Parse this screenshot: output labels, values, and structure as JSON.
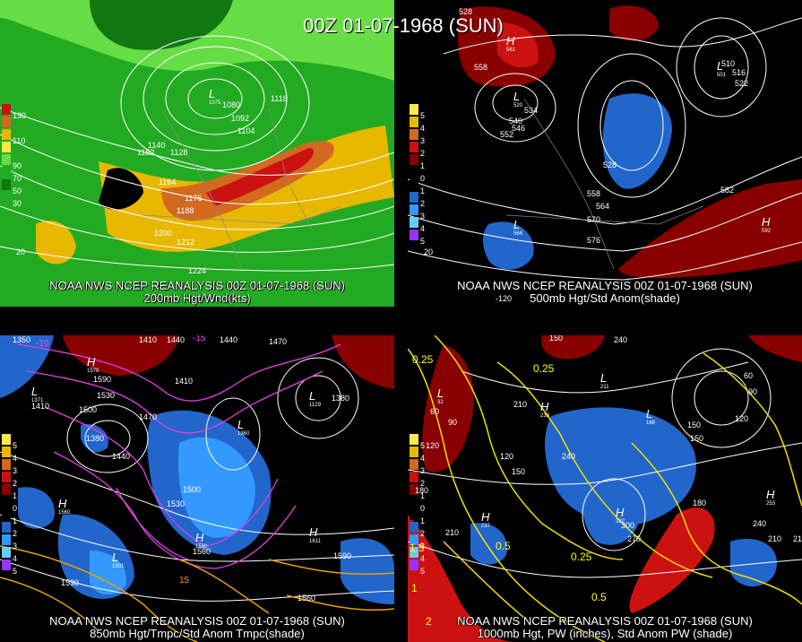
{
  "main_title": "00Z 01-07-1968 (SUN)",
  "panels": {
    "p1": {
      "caption_line1": "NOAA NWS NCEP REANALYSIS 00Z 01-07-1968 (SUN)",
      "caption_line2": "200mb Hgt/Wnd(kts)",
      "legend": [
        "130",
        "110",
        "90",
        "70",
        "50",
        "30"
      ],
      "legend_colors": [
        "#cc1111",
        "#d2691e",
        "#e8b800",
        "#ffe84a",
        "#66dd44",
        "#22aa22",
        "#117711"
      ],
      "low": {
        "letter": "L",
        "value": "1075"
      },
      "labels": [
        "1080",
        "1092",
        "1104",
        "1116",
        "1140",
        "1152",
        "1128",
        "1164",
        "1176",
        "1188",
        "1200",
        "1212",
        "1224",
        "20"
      ]
    },
    "p2": {
      "caption_line1": "NOAA NWS NCEP REANALYSIS 00Z 01-07-1968 (SUN)",
      "caption_line2": "500mb Hgt/Std Anom(shade)",
      "legend": [
        "5",
        "4",
        "3",
        "2",
        "1",
        "0",
        "1",
        "2",
        "3",
        "4",
        "5"
      ],
      "legend_colors": [
        "#ffe84a",
        "#e8b800",
        "#d2691e",
        "#cc1111",
        "#880000",
        "#000000",
        "#000000",
        "#2266cc",
        "#3399ff",
        "#66ccff",
        "#9933ff"
      ],
      "highs": [
        {
          "letter": "H",
          "value": "561"
        },
        {
          "letter": "H",
          "value": "592"
        }
      ],
      "lows": [
        {
          "letter": "L",
          "value": "520"
        },
        {
          "letter": "L",
          "value": "564"
        },
        {
          "letter": "L",
          "value": "501"
        }
      ],
      "labels": [
        "528",
        "558",
        "540",
        "534",
        "552",
        "546",
        "528",
        "558",
        "564",
        "570",
        "576",
        "582",
        "510",
        "516",
        "522",
        "20",
        "-120"
      ]
    },
    "p3": {
      "caption_line1": "NOAA NWS NCEP REANALYSIS 00Z 01-07-1968 (SUN)",
      "caption_line2": "850mb Hgt/Tmpc/Std Anom Tmpc(shade)",
      "legend": [
        "5",
        "4",
        "3",
        "2",
        "1",
        "0",
        "1",
        "2",
        "3",
        "4",
        "5"
      ],
      "highs": [
        {
          "letter": "H",
          "value": "1578"
        },
        {
          "letter": "H",
          "value": "1560"
        },
        {
          "letter": "H",
          "value": "1560"
        },
        {
          "letter": "H",
          "value": "1611"
        }
      ],
      "lows": [
        {
          "letter": "L",
          "value": "1371"
        },
        {
          "letter": "L",
          "value": "1360"
        },
        {
          "letter": "L",
          "value": "1501"
        },
        {
          "letter": "L",
          "value": "1129"
        }
      ],
      "labels": [
        "1350",
        "1410",
        "1440",
        "1440",
        "1470",
        "1590",
        "1530",
        "1410",
        "1500",
        "1470",
        "1380",
        "1440",
        "1410",
        "1500",
        "1530",
        "1560",
        "1560",
        "1590",
        "1530",
        "-10",
        "-15",
        "15",
        "1380"
      ]
    },
    "p4": {
      "caption_line1": "NOAA NWS NCEP REANALYSIS 00Z 01-07-1968 (SUN)",
      "caption_line2": "1000mb Hgt, PW (inches), Std Anom PW (shade)",
      "legend": [
        "5",
        "4",
        "3",
        "2",
        "1",
        "0",
        "1",
        "2",
        "3",
        "4",
        "5"
      ],
      "highs": [
        {
          "letter": "H",
          "value": "233"
        },
        {
          "letter": "H",
          "value": "253"
        },
        {
          "letter": "H",
          "value": "332"
        },
        {
          "letter": "H",
          "value": "237"
        }
      ],
      "lows": [
        {
          "letter": "L",
          "value": "32"
        },
        {
          "letter": "L",
          "value": "211"
        },
        {
          "letter": "L",
          "value": "168"
        }
      ],
      "labels": [
        "150",
        "240",
        "60",
        "90",
        "210",
        "120",
        "150",
        "240",
        "120",
        "150",
        "180",
        "210",
        "270",
        "300",
        "210",
        "180",
        "240",
        "210",
        "60",
        "90",
        "120",
        "150",
        "0.25",
        "0.25",
        "0.5",
        "0.25",
        "0.5",
        "1",
        "2",
        "1.5"
      ]
    }
  }
}
